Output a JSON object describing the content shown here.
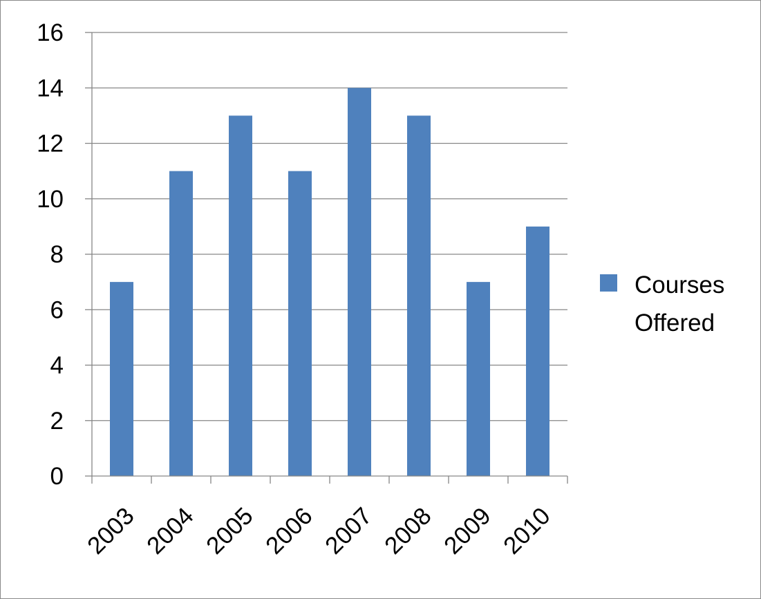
{
  "chart_data": {
    "type": "bar",
    "title": "",
    "xlabel": "",
    "ylabel": "",
    "categories": [
      "2003",
      "2004",
      "2005",
      "2006",
      "2007",
      "2008",
      "2009",
      "2010"
    ],
    "series": [
      {
        "name": "Courses Offered",
        "legend_lines": [
          "Courses",
          "Offered"
        ],
        "values": [
          7,
          11,
          13,
          11,
          14,
          13,
          7,
          9
        ],
        "color": "#4F81BD"
      }
    ],
    "ylim": [
      0,
      16
    ],
    "yticks": [
      "0",
      "2",
      "4",
      "6",
      "8",
      "10",
      "12",
      "14",
      "16"
    ],
    "grid": true,
    "legend_position": "right",
    "colors": {
      "bar": "#4F81BD",
      "grid": "#868686",
      "axis": "#868686"
    }
  }
}
